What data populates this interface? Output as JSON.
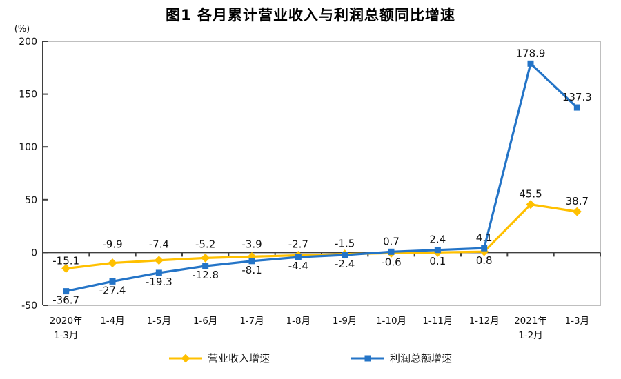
{
  "chart": {
    "title": "图1  各月累计营业收入与利润总额同比增速",
    "y_unit": "(%)"
  },
  "legend": {
    "items": [
      {
        "label": "营业收入增速",
        "color": "#FFC000",
        "marker": "diamond"
      },
      {
        "label": "利润总额增速",
        "color": "#2474C7",
        "marker": "square"
      }
    ]
  },
  "chart_data": {
    "type": "line",
    "title": "图1  各月累计营业收入与利润总额同比增速",
    "y_unit": "(%)",
    "ylim": [
      -50,
      200
    ],
    "yticks": [
      200,
      150,
      100,
      50,
      0,
      -50
    ],
    "grid": false,
    "legend_position": "bottom",
    "categories": [
      "2020年\n1-3月",
      "1-4月",
      "1-5月",
      "1-6月",
      "1-7月",
      "1-8月",
      "1-9月",
      "1-10月",
      "1-11月",
      "1-12月",
      "2021年\n1-2月",
      "1-3月"
    ],
    "series": [
      {
        "name": "营业收入增速",
        "color": "#FFC000",
        "marker": "diamond",
        "values": [
          -15.1,
          -9.9,
          -7.4,
          -5.2,
          -3.9,
          -2.7,
          -1.5,
          -0.6,
          0.1,
          0.8,
          45.5,
          38.7
        ],
        "label_placement": [
          "near",
          "above",
          "above",
          "above",
          "above",
          "above",
          "above",
          "below",
          "below",
          "below",
          "above",
          "above"
        ]
      },
      {
        "name": "利润总额增速",
        "color": "#2474C7",
        "marker": "square",
        "values": [
          -36.7,
          -27.4,
          -19.3,
          -12.8,
          -8.1,
          -4.4,
          -2.4,
          0.7,
          2.4,
          4.1,
          178.9,
          137.3
        ],
        "label_placement": [
          "below",
          "below",
          "below",
          "below",
          "below",
          "below",
          "below",
          "above",
          "above",
          "above",
          "above",
          "above"
        ]
      }
    ]
  }
}
